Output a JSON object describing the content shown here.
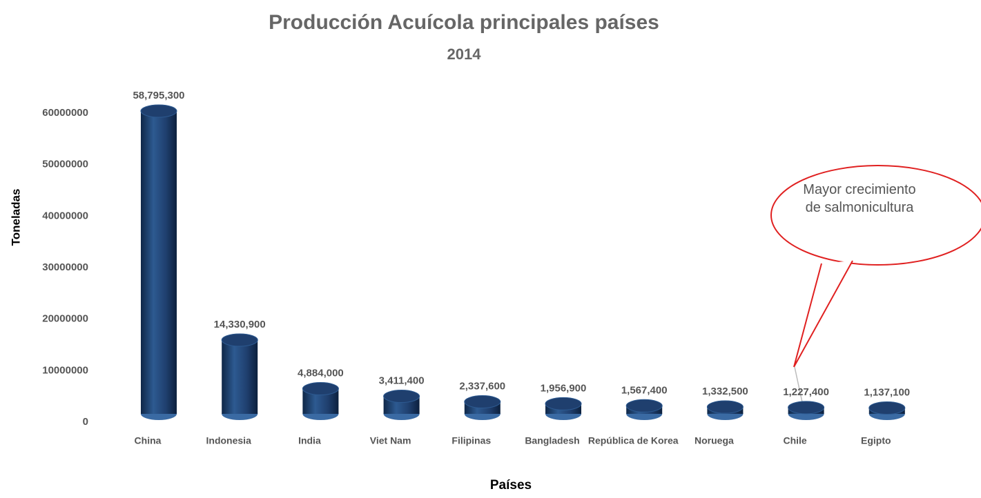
{
  "chart_data": {
    "type": "bar",
    "title": "Producción Acuícola principales países",
    "subtitle": "2014",
    "y_label": "Toneladas",
    "x_label": "Países",
    "annotation": "Mayor crecimiento de salmonicultura",
    "categories": [
      "China",
      "Indonesia",
      "India",
      "Viet Nam",
      "Filipinas",
      "Bangladesh",
      "República de Korea",
      "Noruega",
      "Chile",
      "Egipto"
    ],
    "values": [
      58795300,
      14330900,
      4884000,
      3411400,
      2337600,
      1956900,
      1567400,
      1332500,
      1227400,
      1137100
    ],
    "value_labels": [
      "58,795,300",
      "14,330,900",
      "4,884,000",
      "3,411,400",
      "2,337,600",
      "1,956,900",
      "1,567,400",
      "1,332,500",
      "1,227,400",
      "1,137,100"
    ],
    "color": "#1f3f6e",
    "ylim": [
      0,
      60000000
    ],
    "yticks": [
      0,
      10000000,
      20000000,
      30000000,
      40000000,
      50000000,
      60000000
    ],
    "grid": false
  }
}
